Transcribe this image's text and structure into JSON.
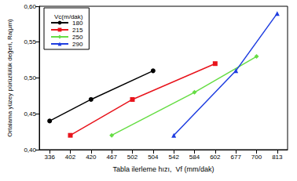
{
  "chart_data": {
    "type": "line",
    "x_label": "Tabla ilerleme hızı,  Vf (mm/dak)",
    "y_label": "Ortalama yüzey pürüzlülük değeri, Ra(µm)",
    "legend_title": "Vc(m/dak)",
    "legend": "upper left",
    "grid": false,
    "categories": [
      "336",
      "402",
      "420",
      "467",
      "502",
      "504",
      "542",
      "584",
      "602",
      "677",
      "700",
      "813"
    ],
    "series": [
      {
        "name": "180",
        "color": "#000000",
        "marker": "circle",
        "values": [
          0.44,
          null,
          0.47,
          null,
          null,
          0.51,
          null,
          null,
          null,
          null,
          null,
          null
        ]
      },
      {
        "name": "215",
        "color": "#e8141c",
        "marker": "rect",
        "values": [
          null,
          0.42,
          null,
          null,
          0.47,
          null,
          null,
          null,
          0.52,
          null,
          null,
          null
        ]
      },
      {
        "name": "250",
        "color": "#66dd44",
        "marker": "diamond",
        "values": [
          null,
          null,
          null,
          0.42,
          null,
          null,
          null,
          0.48,
          null,
          null,
          0.53,
          null
        ]
      },
      {
        "name": "290",
        "color": "#1f3ee0",
        "marker": "triangle",
        "values": [
          null,
          null,
          null,
          null,
          null,
          null,
          0.42,
          null,
          null,
          0.51,
          null,
          0.59
        ]
      }
    ],
    "ylim": [
      0.4,
      0.6
    ],
    "yticks": [
      {
        "value": 0.4,
        "label": "0,40"
      },
      {
        "value": 0.45,
        "label": "0,45"
      },
      {
        "value": 0.5,
        "label": "0,50"
      },
      {
        "value": 0.55,
        "label": "0,55"
      },
      {
        "value": 0.6,
        "label": "0,60"
      }
    ]
  }
}
